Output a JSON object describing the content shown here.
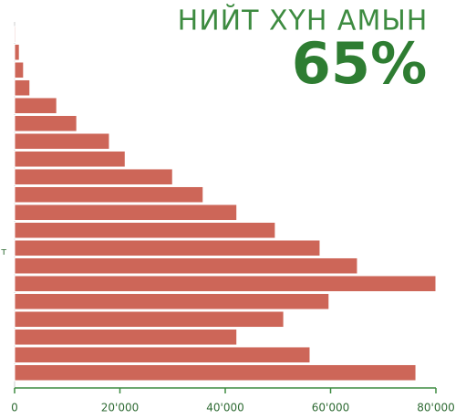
{
  "chart_data": {
    "type": "hbar",
    "title": "НИЙТ ХҮН АМЫН",
    "subtitle": "65%",
    "annotation": "т",
    "categories": [
      null,
      null,
      null,
      null,
      null,
      null,
      null,
      null,
      null,
      null,
      null,
      null,
      null,
      null,
      null,
      null,
      null,
      null,
      null,
      null
    ],
    "values": [
      200,
      900,
      1700,
      2900,
      8000,
      11800,
      18000,
      21000,
      30000,
      35800,
      42200,
      49500,
      58000,
      65100,
      80000,
      59700,
      51100,
      42200,
      56100,
      76200
    ],
    "color": "#cd6658",
    "xlim": [
      0,
      80000
    ],
    "xticks": [
      0,
      {
        "value": 20000,
        "label": "20'000"
      },
      {
        "value": 40000,
        "label": "40'000"
      },
      {
        "value": 60000,
        "label": "60'000"
      },
      {
        "value": 80000,
        "label": "80'000"
      }
    ]
  }
}
